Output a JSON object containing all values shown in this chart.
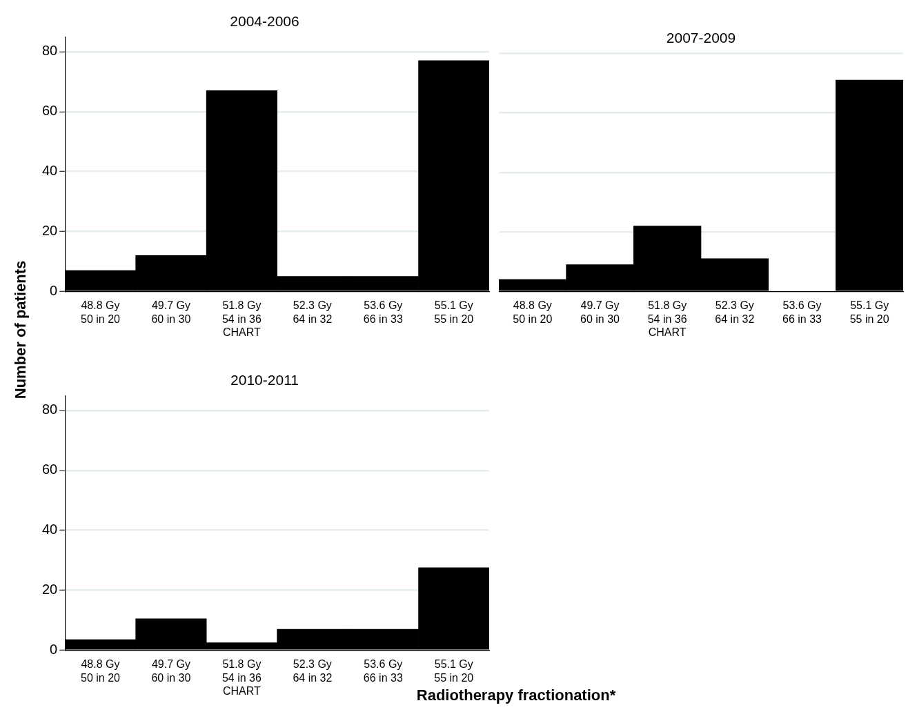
{
  "chart_data": [
    {
      "type": "bar",
      "title": "2004-2006",
      "ylabel": "Number of patients",
      "categories": [
        "48.8 Gy\n50 in 20",
        "49.7 Gy\n60 in 30",
        "51.8 Gy\n54 in 36\nCHART",
        "52.3 Gy\n64 in 32",
        "53.6 Gy\n66 in 33",
        "55.1 Gy\n55 in 20"
      ],
      "values": [
        7,
        12,
        67,
        5,
        5,
        77
      ],
      "color": "#000000",
      "ylim": [
        0,
        85
      ],
      "yticks": [
        0,
        20,
        40,
        60,
        80
      ],
      "grid": "y"
    },
    {
      "type": "bar",
      "title": "2007-2009",
      "categories": [
        "48.8 Gy\n50 in 20",
        "49.7 Gy\n60 in 30",
        "51.8 Gy\n54 in 36\nCHART",
        "52.3 Gy\n64 in 32",
        "53.6 Gy\n66 in 33",
        "55.1 Gy\n55 in 20"
      ],
      "values": [
        4,
        9,
        22,
        11,
        0,
        71
      ],
      "color": "#000000",
      "ylim": [
        0,
        80
      ],
      "yticks": [
        0,
        20,
        40,
        60,
        80
      ],
      "grid": "y",
      "tick_labels": "x"
    },
    {
      "type": "bar",
      "title": "2010-2011",
      "xlabel": "Radiotherapy fractionation*",
      "categories": [
        "48.8 Gy\n50 in 20",
        "49.7 Gy\n60 in 30",
        "51.8 Gy\n54 in 36\nCHART",
        "52.3 Gy\n64 in 32",
        "53.6 Gy\n66 in 33",
        "55.1 Gy\n55 in 20"
      ],
      "values": [
        3.5,
        10.5,
        2.5,
        7,
        7,
        27.5
      ],
      "color": "#000000",
      "ylim": [
        0,
        85
      ],
      "yticks": [
        0,
        20,
        40,
        60,
        80
      ],
      "grid": "y"
    }
  ]
}
